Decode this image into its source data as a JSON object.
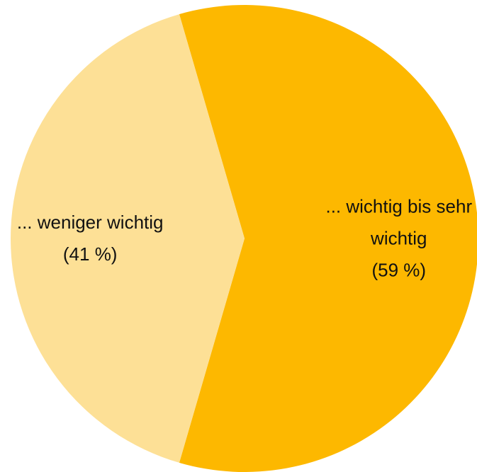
{
  "chart_data": {
    "type": "pie",
    "categories": [
      "... wichtig bis sehr wichtig",
      "... weniger wichtig"
    ],
    "values": [
      59,
      41
    ],
    "value_labels": [
      "(59 %)",
      "(41 %)"
    ],
    "colors": [
      "#FDB800",
      "#FDE096"
    ]
  }
}
